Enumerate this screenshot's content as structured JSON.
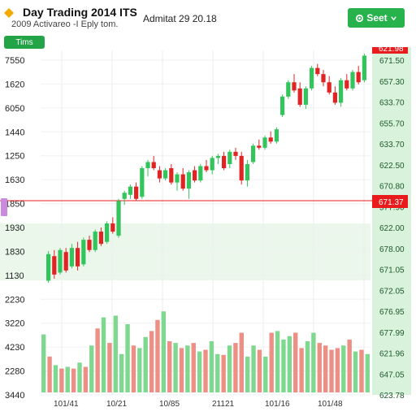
{
  "header": {
    "title": "Day Trading 2014 ITS",
    "subtitle": "2009 Activareo -I Eply tom.",
    "status": "Admitat 29 20.18",
    "select_label": "Seet",
    "time_label": "Tims"
  },
  "colors": {
    "up": "#33c45b",
    "down": "#e02424",
    "accent": "#27b24c",
    "last_price": "#e81c1c",
    "volume_up": "#7fd88f",
    "volume_down": "#ee8f85"
  },
  "icons": {
    "logo": "diamond-icon",
    "select": "gear-icon",
    "dropdown": "chevron-down-icon"
  },
  "chart_data": {
    "type": "candlestick",
    "left_axis_labels": [
      "7550",
      "1620",
      "6050",
      "1440",
      "1250",
      "1630",
      "1850",
      "1930",
      "1830",
      "1130",
      "2230",
      "3220",
      "4230",
      "2280",
      "3440"
    ],
    "right_axis_labels": [
      "671.50",
      "657.30",
      "633.70",
      "655.70",
      "633.70",
      "622.50",
      "670.80",
      "577.90",
      "622.00",
      "678.00",
      "671.05",
      "672.05",
      "676.95",
      "677.99",
      "621.96",
      "647.05",
      "623.78"
    ],
    "last_price_label": "621.98",
    "marker_price_label": "671.37",
    "x_labels": [
      "101/41",
      "10/21",
      "10/85",
      "21121",
      "101/16",
      "101/48"
    ],
    "candles": [
      {
        "o": 1850,
        "h": 1995,
        "l": 1840,
        "c": 1980
      },
      {
        "o": 1970,
        "h": 2000,
        "l": 1860,
        "c": 1880
      },
      {
        "o": 1890,
        "h": 2010,
        "l": 1880,
        "c": 2000
      },
      {
        "o": 1990,
        "h": 2010,
        "l": 1890,
        "c": 1900
      },
      {
        "o": 1920,
        "h": 2030,
        "l": 1910,
        "c": 2010
      },
      {
        "o": 2010,
        "h": 2040,
        "l": 1900,
        "c": 1920
      },
      {
        "o": 1930,
        "h": 2060,
        "l": 1920,
        "c": 2050
      },
      {
        "o": 2050,
        "h": 2070,
        "l": 1990,
        "c": 2000
      },
      {
        "o": 2000,
        "h": 2100,
        "l": 1990,
        "c": 2090
      },
      {
        "o": 2090,
        "h": 2110,
        "l": 2020,
        "c": 2030
      },
      {
        "o": 2040,
        "h": 2140,
        "l": 2030,
        "c": 2130
      },
      {
        "o": 2130,
        "h": 2160,
        "l": 2080,
        "c": 2090
      },
      {
        "o": 2070,
        "h": 2250,
        "l": 2060,
        "c": 2240
      },
      {
        "o": 2250,
        "h": 2290,
        "l": 2220,
        "c": 2280
      },
      {
        "o": 2270,
        "h": 2320,
        "l": 2250,
        "c": 2310
      },
      {
        "o": 2310,
        "h": 2330,
        "l": 2240,
        "c": 2250
      },
      {
        "o": 2260,
        "h": 2410,
        "l": 2250,
        "c": 2400
      },
      {
        "o": 2400,
        "h": 2440,
        "l": 2360,
        "c": 2430
      },
      {
        "o": 2430,
        "h": 2460,
        "l": 2390,
        "c": 2400
      },
      {
        "o": 2390,
        "h": 2410,
        "l": 2330,
        "c": 2350
      },
      {
        "o": 2350,
        "h": 2400,
        "l": 2340,
        "c": 2390
      },
      {
        "o": 2400,
        "h": 2420,
        "l": 2320,
        "c": 2330
      },
      {
        "o": 2330,
        "h": 2380,
        "l": 2290,
        "c": 2370
      },
      {
        "o": 2370,
        "h": 2400,
        "l": 2290,
        "c": 2300
      },
      {
        "o": 2300,
        "h": 2390,
        "l": 2250,
        "c": 2380
      },
      {
        "o": 2390,
        "h": 2410,
        "l": 2330,
        "c": 2340
      },
      {
        "o": 2340,
        "h": 2420,
        "l": 2330,
        "c": 2410
      },
      {
        "o": 2410,
        "h": 2440,
        "l": 2380,
        "c": 2390
      },
      {
        "o": 2390,
        "h": 2460,
        "l": 2370,
        "c": 2450
      },
      {
        "o": 2450,
        "h": 2470,
        "l": 2420,
        "c": 2460
      },
      {
        "o": 2460,
        "h": 2480,
        "l": 2390,
        "c": 2400
      },
      {
        "o": 2420,
        "h": 2490,
        "l": 2400,
        "c": 2480
      },
      {
        "o": 2480,
        "h": 2500,
        "l": 2440,
        "c": 2460
      },
      {
        "o": 2460,
        "h": 2480,
        "l": 2320,
        "c": 2340
      },
      {
        "o": 2340,
        "h": 2440,
        "l": 2310,
        "c": 2420
      },
      {
        "o": 2430,
        "h": 2520,
        "l": 2420,
        "c": 2510
      },
      {
        "o": 2510,
        "h": 2540,
        "l": 2490,
        "c": 2500
      },
      {
        "o": 2500,
        "h": 2560,
        "l": 2490,
        "c": 2550
      },
      {
        "o": 2550,
        "h": 2580,
        "l": 2520,
        "c": 2530
      },
      {
        "o": 2530,
        "h": 2600,
        "l": 2520,
        "c": 2590
      },
      {
        "o": 2660,
        "h": 2760,
        "l": 2650,
        "c": 2750
      },
      {
        "o": 2750,
        "h": 2830,
        "l": 2740,
        "c": 2820
      },
      {
        "o": 2820,
        "h": 2860,
        "l": 2770,
        "c": 2780
      },
      {
        "o": 2790,
        "h": 2820,
        "l": 2700,
        "c": 2710
      },
      {
        "o": 2710,
        "h": 2800,
        "l": 2690,
        "c": 2790
      },
      {
        "o": 2790,
        "h": 2900,
        "l": 2780,
        "c": 2890
      },
      {
        "o": 2890,
        "h": 2910,
        "l": 2850,
        "c": 2860
      },
      {
        "o": 2860,
        "h": 2880,
        "l": 2800,
        "c": 2820
      },
      {
        "o": 2820,
        "h": 2850,
        "l": 2760,
        "c": 2770
      },
      {
        "o": 2770,
        "h": 2800,
        "l": 2710,
        "c": 2720
      },
      {
        "o": 2720,
        "h": 2840,
        "l": 2700,
        "c": 2830
      },
      {
        "o": 2830,
        "h": 2860,
        "l": 2780,
        "c": 2790
      },
      {
        "o": 2790,
        "h": 2880,
        "l": 2780,
        "c": 2870
      },
      {
        "o": 2870,
        "h": 2900,
        "l": 2810,
        "c": 2820
      },
      {
        "o": 2830,
        "h": 2960,
        "l": 2820,
        "c": 2950
      }
    ],
    "volumes": [
      0.68,
      0.42,
      0.32,
      0.28,
      0.3,
      0.28,
      0.35,
      0.3,
      0.55,
      0.75,
      0.88,
      0.58,
      0.9,
      0.45,
      0.8,
      0.55,
      0.52,
      0.65,
      0.72,
      0.85,
      0.95,
      0.6,
      0.58,
      0.52,
      0.55,
      0.58,
      0.48,
      0.5,
      0.6,
      0.45,
      0.44,
      0.55,
      0.58,
      0.7,
      0.42,
      0.55,
      0.5,
      0.42,
      0.7,
      0.72,
      0.62,
      0.66,
      0.7,
      0.52,
      0.6,
      0.7,
      0.58,
      0.55,
      0.5,
      0.52,
      0.55,
      0.62,
      0.48,
      0.5,
      0.45
    ]
  }
}
